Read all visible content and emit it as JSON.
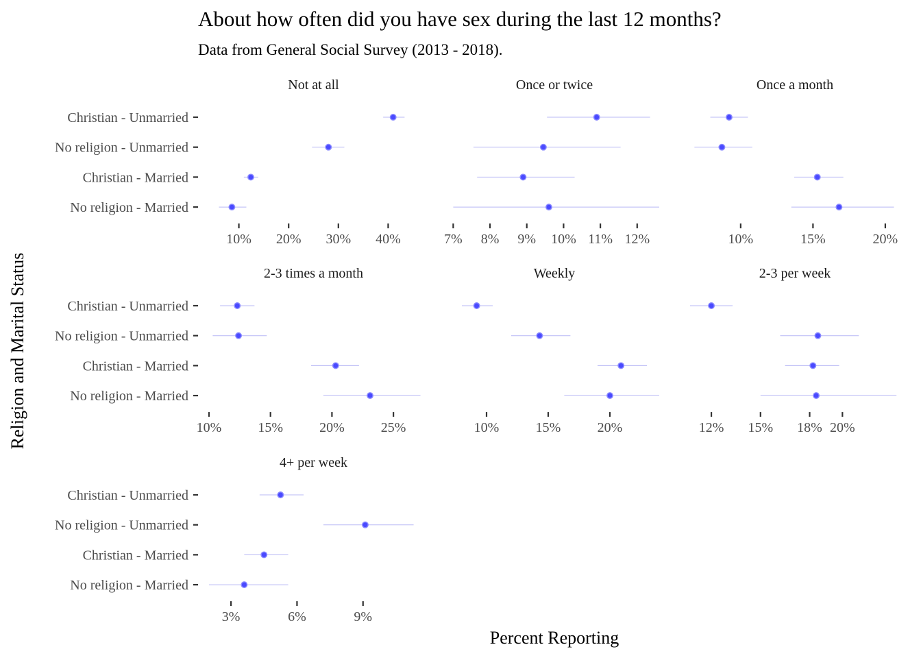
{
  "chart_data": {
    "type": "scatter",
    "title": "About how often did you have sex during the last 12 months?",
    "subtitle": "Data from General Social Survey (2013 - 2018).",
    "xlabel": "Percent Reporting",
    "ylabel": "Religion and Marital Status",
    "categories": [
      "Christian - Unmarried",
      "No religion - Unmarried",
      "Christian - Married",
      "No religion - Married"
    ],
    "point_color": "#4a4aff",
    "interval_color": "#b8b8f5",
    "grid": false,
    "panels": [
      {
        "name": "Not at all",
        "xlim": [
          4.0,
          46.0
        ],
        "ticks": [
          10,
          20,
          30,
          40
        ],
        "tick_labels": [
          "10%",
          "20%",
          "30%",
          "40%"
        ],
        "points": [
          {
            "category": "Christian - Unmarried",
            "value": 41.0,
            "low": 39.0,
            "high": 43.3
          },
          {
            "category": "No religion - Unmarried",
            "value": 28.0,
            "low": 24.7,
            "high": 31.2
          },
          {
            "category": "Christian - Married",
            "value": 12.4,
            "low": 11.0,
            "high": 13.9
          },
          {
            "category": "No religion - Married",
            "value": 8.6,
            "low": 6.0,
            "high": 11.5
          }
        ]
      },
      {
        "name": "Once or twice",
        "xlim": [
          6.9,
          12.6
        ],
        "ticks": [
          7,
          8,
          9,
          10,
          11,
          12
        ],
        "tick_labels": [
          "7%",
          "8%",
          "9%",
          "10%",
          "11%",
          "12%"
        ],
        "points": [
          {
            "category": "Christian - Unmarried",
            "value": 10.9,
            "low": 9.55,
            "high": 12.35
          },
          {
            "category": "No religion - Unmarried",
            "value": 9.45,
            "low": 7.55,
            "high": 11.55
          },
          {
            "category": "Christian - Married",
            "value": 8.9,
            "low": 7.65,
            "high": 10.3
          },
          {
            "category": "No religion - Married",
            "value": 9.6,
            "low": 7.0,
            "high": 12.6
          }
        ]
      },
      {
        "name": "Once a month",
        "xlim": [
          6.5,
          21.0
        ],
        "ticks": [
          10,
          15,
          20
        ],
        "tick_labels": [
          "10%",
          "15%",
          "20%"
        ],
        "points": [
          {
            "category": "Christian - Unmarried",
            "value": 9.2,
            "low": 7.9,
            "high": 10.5
          },
          {
            "category": "No religion - Unmarried",
            "value": 8.7,
            "low": 6.8,
            "high": 10.8
          },
          {
            "category": "Christian - Married",
            "value": 15.3,
            "low": 13.7,
            "high": 17.1
          },
          {
            "category": "No religion - Married",
            "value": 16.8,
            "low": 13.5,
            "high": 20.6
          }
        ]
      },
      {
        "name": "2-3 times a month",
        "xlim": [
          10.0,
          27.0
        ],
        "ticks": [
          10,
          15,
          20,
          25
        ],
        "tick_labels": [
          "10%",
          "15%",
          "20%",
          "25%"
        ],
        "points": [
          {
            "category": "Christian - Unmarried",
            "value": 12.3,
            "low": 10.9,
            "high": 13.7
          },
          {
            "category": "No religion - Unmarried",
            "value": 12.4,
            "low": 10.3,
            "high": 14.7
          },
          {
            "category": "Christian - Married",
            "value": 20.3,
            "low": 18.3,
            "high": 22.2
          },
          {
            "category": "No religion - Married",
            "value": 23.1,
            "low": 19.3,
            "high": 27.2
          }
        ]
      },
      {
        "name": "Weekly",
        "xlim": [
          7.0,
          24.0
        ],
        "ticks": [
          10,
          15,
          20
        ],
        "tick_labels": [
          "10%",
          "15%",
          "20%"
        ],
        "points": [
          {
            "category": "Christian - Unmarried",
            "value": 9.2,
            "low": 8.0,
            "high": 10.5
          },
          {
            "category": "No religion - Unmarried",
            "value": 14.3,
            "low": 12.0,
            "high": 16.8
          },
          {
            "category": "Christian - Married",
            "value": 20.9,
            "low": 19.0,
            "high": 23.0
          },
          {
            "category": "No religion - Married",
            "value": 20.0,
            "low": 16.3,
            "high": 24.0
          }
        ]
      },
      {
        "name": "2-3 per week",
        "xlim": [
          10.7,
          23.5
        ],
        "ticks": [
          12,
          15,
          18,
          20
        ],
        "tick_labels": [
          "12%",
          "15%",
          "18%",
          "20%"
        ],
        "points": [
          {
            "category": "Christian - Unmarried",
            "value": 12.0,
            "low": 10.7,
            "high": 13.3
          },
          {
            "category": "No religion - Unmarried",
            "value": 18.5,
            "low": 16.2,
            "high": 21.0
          },
          {
            "category": "Christian - Married",
            "value": 18.2,
            "low": 16.5,
            "high": 19.8
          },
          {
            "category": "No religion - Married",
            "value": 18.4,
            "low": 15.0,
            "high": 23.3
          }
        ]
      },
      {
        "name": "4+ per week",
        "xlim": [
          2.0,
          11.5
        ],
        "ticks": [
          3,
          6,
          9
        ],
        "tick_labels": [
          "3%",
          "6%",
          "9%"
        ],
        "points": [
          {
            "category": "Christian - Unmarried",
            "value": 5.25,
            "low": 4.3,
            "high": 6.3
          },
          {
            "category": "No religion - Unmarried",
            "value": 9.1,
            "low": 7.2,
            "high": 11.3
          },
          {
            "category": "Christian - Married",
            "value": 4.5,
            "low": 3.6,
            "high": 5.6
          },
          {
            "category": "No religion - Married",
            "value": 3.6,
            "low": 2.0,
            "high": 5.6
          }
        ]
      }
    ]
  }
}
